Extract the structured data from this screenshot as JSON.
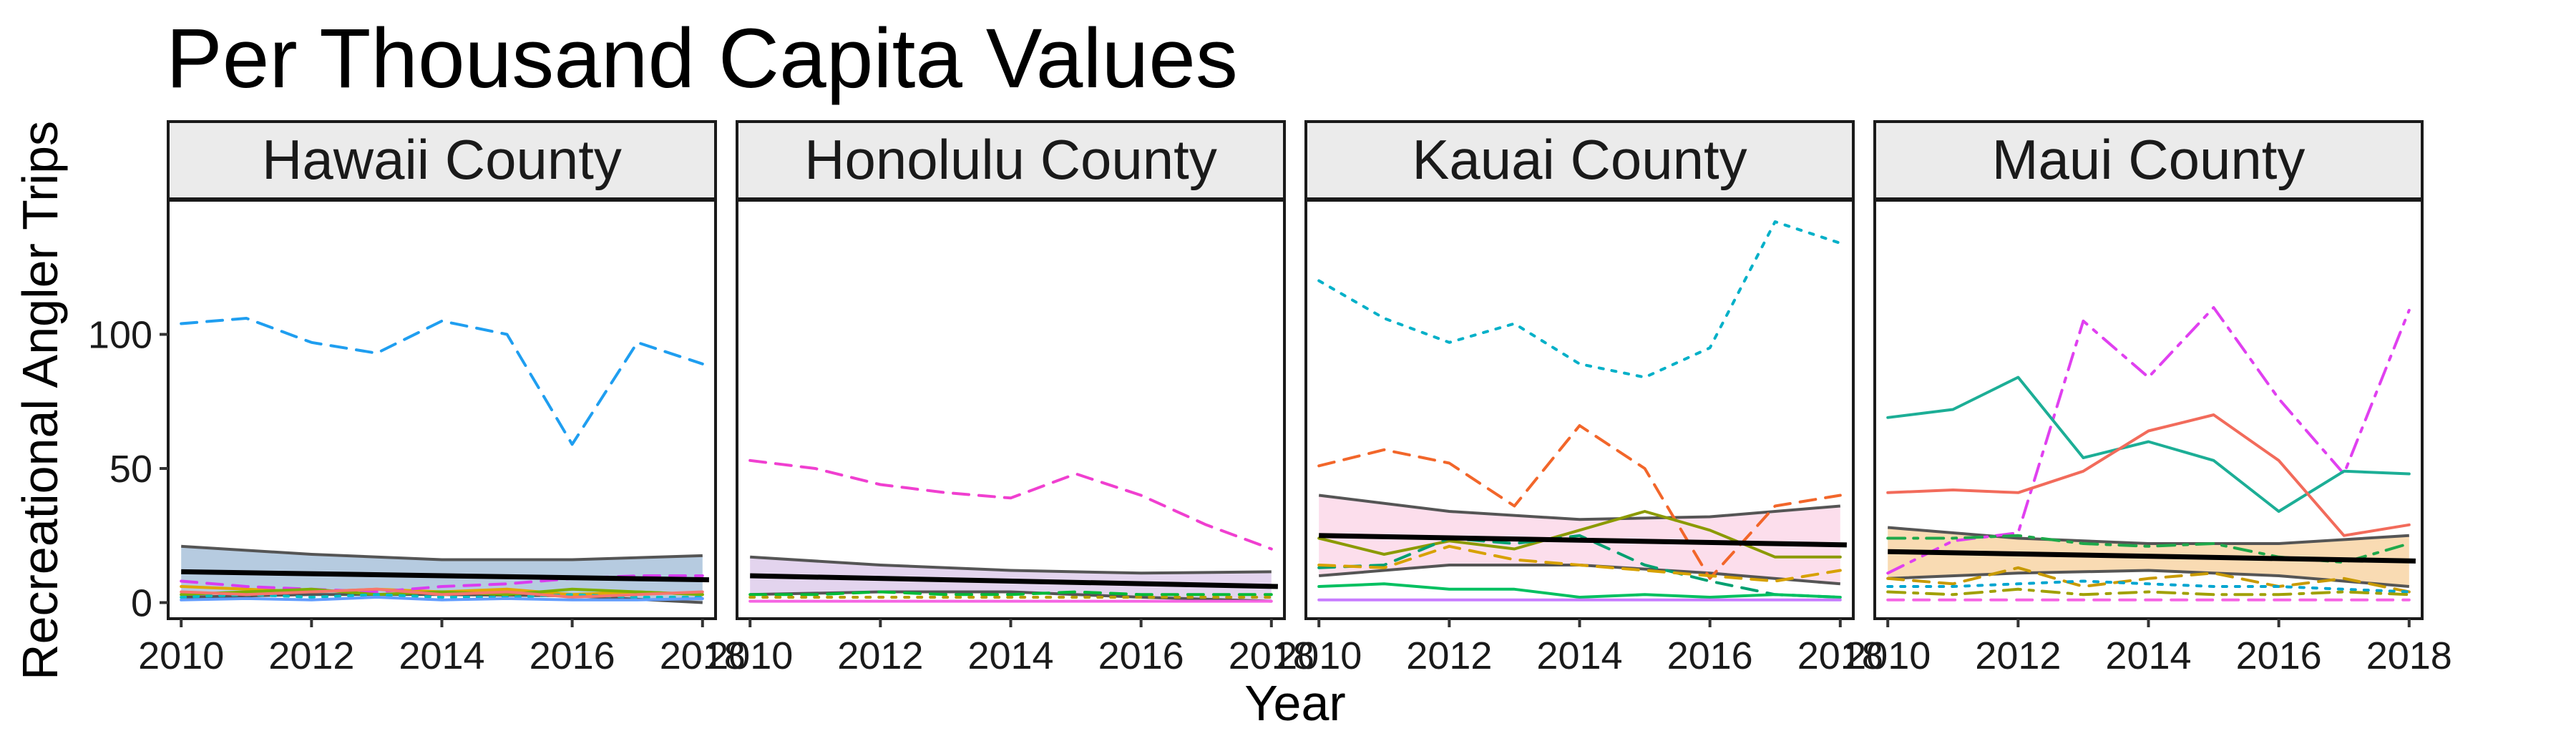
{
  "chart_data": {
    "type": "line",
    "title": "Per Thousand Capita Values",
    "xlabel": "Year",
    "ylabel": "Recreational Angler Trips",
    "x_ticks": [
      2010,
      2012,
      2014,
      2016,
      2018
    ],
    "y_ticks": [
      0,
      50,
      100
    ],
    "xlim": [
      2009.8,
      2018.2
    ],
    "ylim": [
      -6,
      150
    ],
    "grid": false,
    "legend": "none",
    "panels": [
      {
        "name": "Hawaii County",
        "band_color": "#9db9d6",
        "trend": {
          "x": [
            2010,
            2018.1
          ],
          "y": [
            11.5,
            8.5
          ]
        },
        "band": {
          "x": [
            2010,
            2012,
            2014,
            2016,
            2018
          ],
          "upper": [
            21,
            18,
            16,
            16,
            17.5
          ],
          "lower": [
            2,
            3,
            3,
            2.5,
            0
          ]
        },
        "series": [
          {
            "color": "#1f9ef0",
            "dash": "dashed",
            "x": [
              2010,
              2011,
              2012,
              2013,
              2014,
              2015,
              2016,
              2017,
              2018
            ],
            "y": [
              104,
              106,
              97,
              93,
              105,
              100,
              59,
              97,
              89
            ]
          },
          {
            "color": "#e0a800",
            "dash": "solid",
            "x": [
              2010,
              2011,
              2012,
              2013,
              2014,
              2015,
              2016,
              2017,
              2018
            ],
            "y": [
              6,
              5,
              4,
              5,
              4,
              5,
              3,
              4,
              3
            ]
          },
          {
            "color": "#d93df0",
            "dash": "dashed",
            "x": [
              2010,
              2011,
              2012,
              2013,
              2014,
              2015,
              2016,
              2017,
              2018
            ],
            "y": [
              8,
              6,
              5,
              4,
              6,
              7,
              9,
              10,
              10
            ]
          },
          {
            "color": "#7cae00",
            "dash": "solid",
            "x": [
              2010,
              2011,
              2012,
              2013,
              2014,
              2015,
              2016,
              2017,
              2018
            ],
            "y": [
              3,
              4,
              5,
              3,
              4,
              3,
              5,
              4,
              3
            ]
          },
          {
            "color": "#00bfc4",
            "dash": "dotted",
            "x": [
              2010,
              2011,
              2012,
              2013,
              2014,
              2015,
              2016,
              2017,
              2018
            ],
            "y": [
              2,
              3,
              2,
              3,
              2,
              2,
              3,
              2,
              2
            ]
          },
          {
            "color": "#f8766d",
            "dash": "solid",
            "x": [
              2010,
              2011,
              2012,
              2013,
              2014,
              2015,
              2016,
              2017,
              2018
            ],
            "y": [
              4,
              3,
              4,
              5,
              3,
              4,
              2,
              3,
              4
            ]
          },
          {
            "color": "#619cff",
            "dash": "solid",
            "x": [
              2010,
              2011,
              2012,
              2013,
              2014,
              2015,
              2016,
              2017,
              2018
            ],
            "y": [
              1,
              1.5,
              1,
              2,
              1,
              1.5,
              1,
              1,
              1.5
            ]
          }
        ]
      },
      {
        "name": "Honolulu County",
        "band_color": "#d9c6e8",
        "trend": {
          "x": [
            2010,
            2018.1
          ],
          "y": [
            10,
            6
          ]
        },
        "band": {
          "x": [
            2010,
            2012,
            2014,
            2016,
            2018
          ],
          "upper": [
            17,
            14,
            12,
            11,
            11.5
          ],
          "lower": [
            3,
            4,
            4,
            2,
            0.5
          ]
        },
        "series": [
          {
            "color": "#f03fd0",
            "dash": "dashed",
            "x": [
              2010,
              2011,
              2012,
              2013,
              2014,
              2015,
              2016,
              2017,
              2018
            ],
            "y": [
              53,
              50,
              44,
              41,
              39,
              48,
              40,
              29,
              20
            ]
          },
          {
            "color": "#00ba38",
            "dash": "dashed",
            "x": [
              2010,
              2011,
              2012,
              2013,
              2014,
              2015,
              2016,
              2017,
              2018
            ],
            "y": [
              3,
              3,
              4,
              3,
              3,
              4,
              3,
              3,
              3
            ]
          },
          {
            "color": "#b79f00",
            "dash": "dotted",
            "x": [
              2010,
              2011,
              2012,
              2013,
              2014,
              2015,
              2016,
              2017,
              2018
            ],
            "y": [
              2,
              2,
              2,
              2,
              2,
              2,
              2,
              2,
              2
            ]
          },
          {
            "color": "#f564e3",
            "dash": "solid",
            "x": [
              2010,
              2011,
              2012,
              2013,
              2014,
              2015,
              2016,
              2017,
              2018
            ],
            "y": [
              0.5,
              0.5,
              0.5,
              0.5,
              0.5,
              0.5,
              0.5,
              0.5,
              0.5
            ]
          }
        ]
      },
      {
        "name": "Kauai County",
        "band_color": "#fbd3e6",
        "trend": {
          "x": [
            2010,
            2018.1
          ],
          "y": [
            25,
            21.5
          ]
        },
        "band": {
          "x": [
            2010,
            2012,
            2014,
            2016,
            2018
          ],
          "upper": [
            40,
            34,
            31,
            32,
            36
          ],
          "lower": [
            10,
            14,
            14,
            11,
            7
          ]
        },
        "series": [
          {
            "color": "#00b0c8",
            "dash": "dotted",
            "x": [
              2010,
              2011,
              2012,
              2013,
              2014,
              2015,
              2016,
              2017,
              2018
            ],
            "y": [
              120,
              106,
              97,
              104,
              89,
              84,
              95,
              142,
              134
            ]
          },
          {
            "color": "#f2662a",
            "dash": "dashed",
            "x": [
              2010,
              2011,
              2012,
              2013,
              2014,
              2015,
              2016,
              2017,
              2018
            ],
            "y": [
              51,
              57,
              52,
              36,
              66,
              50,
              9,
              36,
              40
            ]
          },
          {
            "color": "#8b9a00",
            "dash": "solid",
            "x": [
              2010,
              2011,
              2012,
              2013,
              2014,
              2015,
              2016,
              2017,
              2018
            ],
            "y": [
              24,
              18,
              23,
              20,
              27,
              34,
              27,
              17,
              17
            ]
          },
          {
            "color": "#00a070",
            "dash": "dashed",
            "x": [
              2010,
              2011,
              2012,
              2013,
              2014,
              2015,
              2016,
              2017,
              2018
            ],
            "y": [
              13,
              14,
              24,
              22,
              25,
              14,
              8,
              3,
              2
            ]
          },
          {
            "color": "#d7a100",
            "dash": "dashed",
            "x": [
              2010,
              2011,
              2012,
              2013,
              2014,
              2015,
              2016,
              2017,
              2018
            ],
            "y": [
              14,
              13,
              21,
              16,
              14,
              12,
              10,
              8,
              12
            ]
          },
          {
            "color": "#00c060",
            "dash": "solid",
            "x": [
              2010,
              2011,
              2012,
              2013,
              2014,
              2015,
              2016,
              2017,
              2018
            ],
            "y": [
              6,
              7,
              5,
              5,
              2,
              3,
              2,
              3,
              2
            ]
          },
          {
            "color": "#c77cff",
            "dash": "solid",
            "x": [
              2010,
              2011,
              2012,
              2013,
              2014,
              2015,
              2016,
              2017,
              2018
            ],
            "y": [
              1,
              1,
              1,
              1,
              1,
              1,
              1,
              1,
              1
            ]
          }
        ]
      },
      {
        "name": "Maui County",
        "band_color": "#f7cf9a",
        "trend": {
          "x": [
            2010,
            2018.1
          ],
          "y": [
            19,
            15.5
          ]
        },
        "band": {
          "x": [
            2010,
            2012,
            2014,
            2016,
            2018
          ],
          "upper": [
            28,
            24,
            22,
            22,
            25
          ],
          "lower": [
            9,
            11,
            12,
            10,
            6
          ]
        },
        "series": [
          {
            "color": "#e040f0",
            "dash": "dotdash",
            "x": [
              2010,
              2011,
              2012,
              2013,
              2014,
              2015,
              2016,
              2017,
              2018
            ],
            "y": [
              11,
              23,
              26,
              105,
              84,
              110,
              76,
              48,
              109
            ]
          },
          {
            "color": "#1cae96",
            "dash": "solid",
            "x": [
              2010,
              2011,
              2012,
              2013,
              2014,
              2015,
              2016,
              2017,
              2018
            ],
            "y": [
              69,
              72,
              84,
              54,
              60,
              53,
              34,
              49,
              48
            ]
          },
          {
            "color": "#f26b5b",
            "dash": "solid",
            "x": [
              2010,
              2011,
              2012,
              2013,
              2014,
              2015,
              2016,
              2017,
              2018
            ],
            "y": [
              41,
              42,
              41,
              49,
              64,
              70,
              53,
              25,
              29
            ]
          },
          {
            "color": "#1ea84a",
            "dash": "dotdash",
            "x": [
              2010,
              2011,
              2012,
              2013,
              2014,
              2015,
              2016,
              2017,
              2018
            ],
            "y": [
              24,
              24,
              25,
              22,
              21,
              22,
              17,
              15,
              22
            ]
          },
          {
            "color": "#c89a00",
            "dash": "dashed",
            "x": [
              2010,
              2011,
              2012,
              2013,
              2014,
              2015,
              2016,
              2017,
              2018
            ],
            "y": [
              9,
              7,
              13,
              6,
              9,
              11,
              6,
              9,
              4
            ]
          },
          {
            "color": "#00a5d0",
            "dash": "dotted",
            "x": [
              2010,
              2011,
              2012,
              2013,
              2014,
              2015,
              2016,
              2017,
              2018
            ],
            "y": [
              6,
              6,
              7,
              8,
              7,
              6,
              6,
              5,
              4
            ]
          },
          {
            "color": "#a0a000",
            "dash": "dotdash",
            "x": [
              2010,
              2011,
              2012,
              2013,
              2014,
              2015,
              2016,
              2017,
              2018
            ],
            "y": [
              4,
              3,
              5,
              3,
              4,
              3,
              3,
              4,
              3
            ]
          },
          {
            "color": "#f564e3",
            "dash": "dashed",
            "x": [
              2010,
              2011,
              2012,
              2013,
              2014,
              2015,
              2016,
              2017,
              2018
            ],
            "y": [
              1,
              1,
              1,
              1,
              1,
              1,
              1,
              1,
              1
            ]
          }
        ]
      }
    ]
  }
}
